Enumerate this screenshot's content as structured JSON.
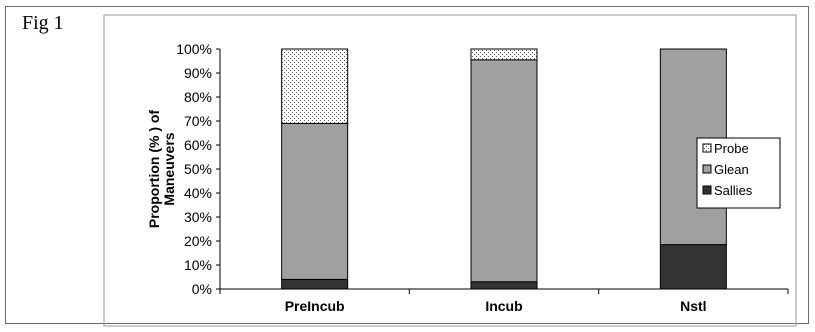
{
  "figure": {
    "label": "Fig 1"
  },
  "chart_data": {
    "type": "bar",
    "stacked": true,
    "categories": [
      "PreIncub",
      "Incub",
      "Nstl"
    ],
    "series": [
      {
        "name": "Sallies",
        "values": [
          4,
          3,
          18.5
        ],
        "color": "#333333",
        "pattern": "solid-dark"
      },
      {
        "name": "Glean",
        "values": [
          65,
          92.5,
          81.5
        ],
        "color": "#a0a0a0",
        "pattern": "solid-gray"
      },
      {
        "name": "Probe",
        "values": [
          31,
          4.5,
          0
        ],
        "color": "#ffffff",
        "pattern": "dotted"
      }
    ],
    "ylabel_lines": [
      "Proportion (% ) of",
      "Maneuvers"
    ],
    "yticks": [
      "0%",
      "10%",
      "20%",
      "30%",
      "40%",
      "50%",
      "60%",
      "70%",
      "80%",
      "90%",
      "100%"
    ],
    "ylim": [
      0,
      100
    ],
    "legend_order": [
      "Probe",
      "Glean",
      "Sallies"
    ],
    "legend_position": "right",
    "grid": false
  }
}
